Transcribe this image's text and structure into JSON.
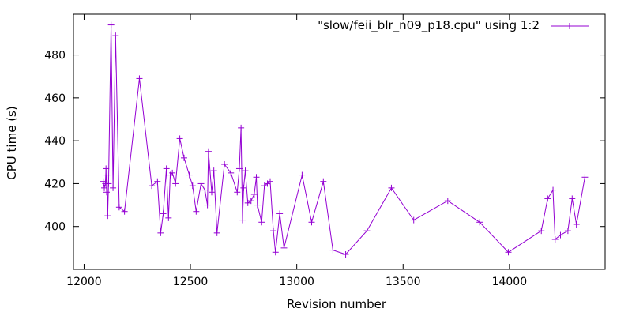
{
  "chart_data": {
    "type": "line",
    "title": "",
    "xlabel": "Revision number",
    "ylabel": "CPU time (s)",
    "xlim": [
      11950,
      14450
    ],
    "ylim": [
      380,
      499
    ],
    "xticks": [
      12000,
      12500,
      13000,
      13500,
      14000
    ],
    "yticks": [
      400,
      420,
      440,
      460,
      480
    ],
    "grid": false,
    "legend_position": "top-right",
    "series": [
      {
        "name": "\"slow/feii_blr_n09_p18.cpu\" using 1:2",
        "color": "#9400d3",
        "marker": "plus",
        "points": [
          [
            12090,
            421
          ],
          [
            12095,
            418
          ],
          [
            12100,
            420
          ],
          [
            12103,
            427
          ],
          [
            12106,
            416
          ],
          [
            12108,
            424
          ],
          [
            12111,
            405
          ],
          [
            12115,
            420
          ],
          [
            12127,
            494
          ],
          [
            12136,
            418
          ],
          [
            12148,
            489
          ],
          [
            12165,
            409
          ],
          [
            12190,
            407
          ],
          [
            12260,
            469
          ],
          [
            12318,
            419
          ],
          [
            12345,
            421
          ],
          [
            12360,
            397
          ],
          [
            12372,
            406
          ],
          [
            12387,
            427
          ],
          [
            12397,
            404
          ],
          [
            12405,
            424
          ],
          [
            12415,
            425
          ],
          [
            12430,
            420
          ],
          [
            12450,
            441
          ],
          [
            12470,
            432
          ],
          [
            12495,
            424
          ],
          [
            12510,
            419
          ],
          [
            12527,
            407
          ],
          [
            12550,
            420
          ],
          [
            12568,
            417
          ],
          [
            12580,
            410
          ],
          [
            12585,
            435
          ],
          [
            12600,
            416
          ],
          [
            12610,
            426
          ],
          [
            12625,
            397
          ],
          [
            12660,
            429
          ],
          [
            12690,
            425
          ],
          [
            12720,
            416
          ],
          [
            12730,
            427
          ],
          [
            12738,
            446
          ],
          [
            12745,
            403
          ],
          [
            12750,
            418
          ],
          [
            12758,
            426
          ],
          [
            12770,
            411
          ],
          [
            12785,
            412
          ],
          [
            12800,
            415
          ],
          [
            12810,
            423
          ],
          [
            12815,
            410
          ],
          [
            12835,
            402
          ],
          [
            12848,
            419
          ],
          [
            12862,
            420
          ],
          [
            12875,
            421
          ],
          [
            12890,
            398
          ],
          [
            12900,
            388
          ],
          [
            12920,
            406
          ],
          [
            12940,
            390
          ],
          [
            13025,
            424
          ],
          [
            13070,
            402
          ],
          [
            13125,
            421
          ],
          [
            13170,
            389
          ],
          [
            13230,
            387
          ],
          [
            13330,
            398
          ],
          [
            13445,
            418
          ],
          [
            13550,
            403
          ],
          [
            13710,
            412
          ],
          [
            13860,
            402
          ],
          [
            13995,
            388
          ],
          [
            14150,
            398
          ],
          [
            14180,
            413
          ],
          [
            14205,
            417
          ],
          [
            14215,
            394
          ],
          [
            14240,
            396
          ],
          [
            14275,
            398
          ],
          [
            14295,
            413
          ],
          [
            14315,
            401
          ],
          [
            14355,
            423
          ]
        ]
      }
    ]
  }
}
